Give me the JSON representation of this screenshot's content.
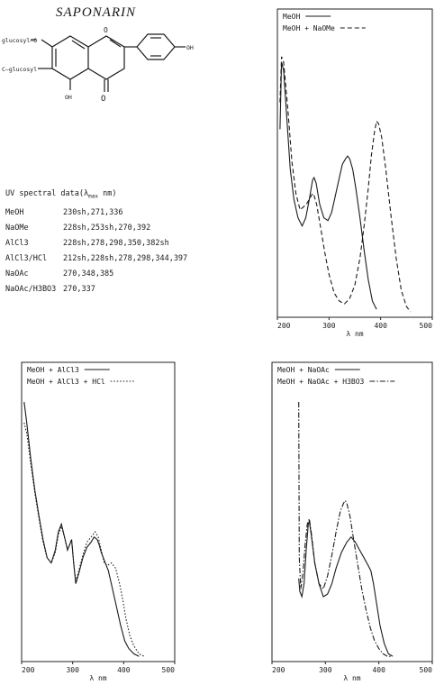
{
  "page": {
    "title": "SAPONARIN"
  },
  "structure": {
    "labels": {
      "glucosyl_o": "glucosyl—O",
      "c_glucosyl": "C—glucosyl",
      "oh_5": "OH",
      "oh_4p": "OH",
      "keto": "O",
      "ring_o": "O"
    }
  },
  "uv_table": {
    "heading_pre": "UV spectral data(λ",
    "heading_sub": "max",
    "heading_post": " nm)",
    "rows": [
      {
        "solvent": "MeOH",
        "values": "230sh,271,336"
      },
      {
        "solvent": "NaOMe",
        "values": "228sh,253sh,270,392"
      },
      {
        "solvent": "AlCl3",
        "values": "228sh,278,298,350,382sh"
      },
      {
        "solvent": "AlCl3/HCl",
        "values": "212sh,228sh,278,298,344,397"
      },
      {
        "solvent": "NaOAc",
        "values": "270,348,385"
      },
      {
        "solvent": "NaOAc/H3BO3",
        "values": "270,337"
      }
    ]
  },
  "chart_data": [
    {
      "type": "line",
      "xlabel": "λ nm",
      "xlim": [
        200,
        500
      ],
      "xticks": [
        "200",
        "300",
        "400",
        "500"
      ],
      "legend_position": "top",
      "series": [
        {
          "name": "MeOH",
          "style": "solid",
          "x": [
            205,
            208,
            212,
            218,
            225,
            232,
            240,
            248,
            255,
            262,
            268,
            271,
            275,
            282,
            290,
            298,
            305,
            312,
            320,
            326,
            332,
            336,
            340,
            346,
            352,
            360,
            368,
            376,
            384,
            392
          ],
          "y": [
            0.7,
            0.95,
            0.92,
            0.75,
            0.55,
            0.44,
            0.37,
            0.34,
            0.37,
            0.44,
            0.51,
            0.52,
            0.5,
            0.42,
            0.37,
            0.36,
            0.39,
            0.45,
            0.52,
            0.57,
            0.59,
            0.6,
            0.59,
            0.55,
            0.48,
            0.37,
            0.25,
            0.14,
            0.06,
            0.03
          ]
        },
        {
          "name": "MeOH + NaOMe",
          "style": "dashed",
          "x": [
            205,
            208,
            212,
            220,
            228,
            236,
            244,
            250,
            256,
            262,
            268,
            270,
            276,
            284,
            292,
            300,
            310,
            320,
            330,
            340,
            350,
            360,
            368,
            376,
            382,
            388,
            392,
            396,
            402,
            410,
            420,
            430,
            440,
            450,
            458
          ],
          "y": [
            0.8,
            0.97,
            0.95,
            0.78,
            0.58,
            0.46,
            0.4,
            0.41,
            0.42,
            0.44,
            0.46,
            0.46,
            0.42,
            0.33,
            0.24,
            0.16,
            0.09,
            0.06,
            0.05,
            0.07,
            0.12,
            0.22,
            0.34,
            0.48,
            0.6,
            0.69,
            0.73,
            0.72,
            0.67,
            0.55,
            0.38,
            0.22,
            0.1,
            0.04,
            0.02
          ]
        }
      ]
    },
    {
      "type": "line",
      "xlabel": "λ nm",
      "xlim": [
        200,
        500
      ],
      "xticks": [
        "200",
        "300",
        "400",
        "500"
      ],
      "legend_position": "top",
      "series": [
        {
          "name": "MeOH + AlCl3",
          "style": "solid",
          "x": [
            205,
            210,
            218,
            226,
            234,
            242,
            250,
            258,
            266,
            272,
            278,
            284,
            290,
            294,
            298,
            302,
            306,
            312,
            320,
            328,
            336,
            342,
            348,
            352,
            356,
            362,
            370,
            378,
            386,
            394,
            402,
            410,
            420,
            430
          ],
          "y": [
            1.0,
            0.92,
            0.78,
            0.66,
            0.56,
            0.47,
            0.4,
            0.38,
            0.43,
            0.5,
            0.53,
            0.48,
            0.43,
            0.45,
            0.47,
            0.38,
            0.3,
            0.34,
            0.4,
            0.44,
            0.46,
            0.48,
            0.47,
            0.45,
            0.42,
            0.39,
            0.35,
            0.28,
            0.21,
            0.14,
            0.08,
            0.05,
            0.03,
            0.02
          ]
        },
        {
          "name": "MeOH + AlCl3 + HCl",
          "style": "dotted",
          "x": [
            205,
            210,
            218,
            226,
            234,
            242,
            250,
            258,
            266,
            272,
            278,
            284,
            290,
            294,
            298,
            302,
            306,
            312,
            320,
            328,
            336,
            344,
            350,
            356,
            362,
            368,
            376,
            384,
            392,
            398,
            404,
            412,
            420,
            430,
            440
          ],
          "y": [
            0.92,
            0.88,
            0.76,
            0.65,
            0.55,
            0.46,
            0.4,
            0.38,
            0.42,
            0.49,
            0.52,
            0.48,
            0.43,
            0.45,
            0.47,
            0.38,
            0.31,
            0.35,
            0.41,
            0.46,
            0.48,
            0.5,
            0.48,
            0.43,
            0.38,
            0.37,
            0.38,
            0.36,
            0.3,
            0.24,
            0.17,
            0.1,
            0.06,
            0.03,
            0.02
          ]
        }
      ]
    },
    {
      "type": "line",
      "xlabel": "λ nm",
      "xlim": [
        200,
        500
      ],
      "xticks": [
        "200",
        "300",
        "400",
        "500"
      ],
      "legend_position": "top",
      "series": [
        {
          "name": "MeOH + NaOAc",
          "style": "solid",
          "x": [
            250,
            252,
            256,
            260,
            264,
            268,
            270,
            274,
            280,
            288,
            296,
            304,
            312,
            320,
            330,
            340,
            348,
            356,
            364,
            372,
            380,
            385,
            390,
            396,
            402,
            410,
            418,
            426
          ],
          "y": [
            0.32,
            0.27,
            0.25,
            0.3,
            0.43,
            0.53,
            0.54,
            0.48,
            0.38,
            0.3,
            0.25,
            0.26,
            0.3,
            0.36,
            0.42,
            0.46,
            0.48,
            0.46,
            0.43,
            0.4,
            0.37,
            0.35,
            0.3,
            0.22,
            0.14,
            0.07,
            0.03,
            0.02
          ]
        },
        {
          "name": "MeOH + NaOAc + H3BO3",
          "style": "dashdot",
          "x": [
            250,
            251,
            254,
            258,
            262,
            266,
            270,
            274,
            280,
            288,
            296,
            304,
            312,
            320,
            328,
            334,
            337,
            340,
            346,
            352,
            360,
            368,
            376,
            384,
            392,
            400,
            408,
            416,
            424
          ],
          "y": [
            1.0,
            0.4,
            0.28,
            0.34,
            0.45,
            0.53,
            0.55,
            0.49,
            0.38,
            0.3,
            0.28,
            0.33,
            0.41,
            0.5,
            0.58,
            0.61,
            0.62,
            0.61,
            0.56,
            0.48,
            0.38,
            0.28,
            0.2,
            0.13,
            0.08,
            0.05,
            0.03,
            0.02,
            0.02
          ]
        }
      ]
    }
  ]
}
